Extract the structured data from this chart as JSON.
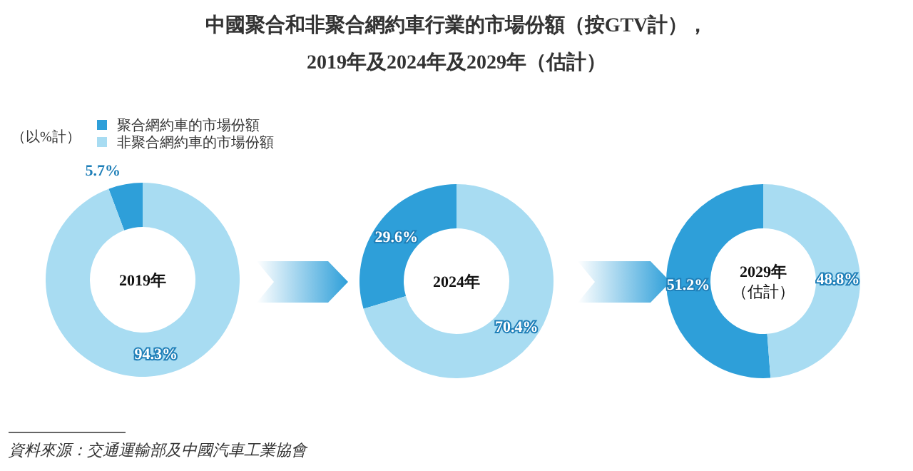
{
  "chart_data": [
    {
      "type": "donut",
      "categories": [
        "聚合網約車的市場份額",
        "非聚合網約車的市場份額"
      ],
      "values": [
        5.7,
        94.3
      ],
      "value_labels": [
        "5.7%",
        "94.3%"
      ],
      "colors": [
        "#2e9fd9",
        "#a8dcf2"
      ],
      "legend": "top",
      "annotations": [
        "2019年",
        "（以%計）",
        "資料來源：交通運輸部及中國汽車工業協會"
      ]
    },
    {
      "type": "donut",
      "title": "中國聚合和非聚合網約車行業的市場份額（按GTV計），",
      "subtitle": "2019年及2024年及2029年（估計）",
      "values": [
        29.6,
        70.4
      ],
      "value_labels": [
        "29.6%",
        "70.4%"
      ],
      "colors": [
        "#2e9fd9",
        "#a8dcf2"
      ],
      "annotations": [
        "2024年"
      ]
    },
    {
      "type": "donut",
      "values": [
        51.2,
        48.8
      ],
      "value_labels": [
        "51.2%",
        "48.8%"
      ],
      "colors": [
        "#2e9fd9",
        "#a8dcf2"
      ],
      "annotations": [
        "2029年",
        "（估計）"
      ]
    }
  ]
}
